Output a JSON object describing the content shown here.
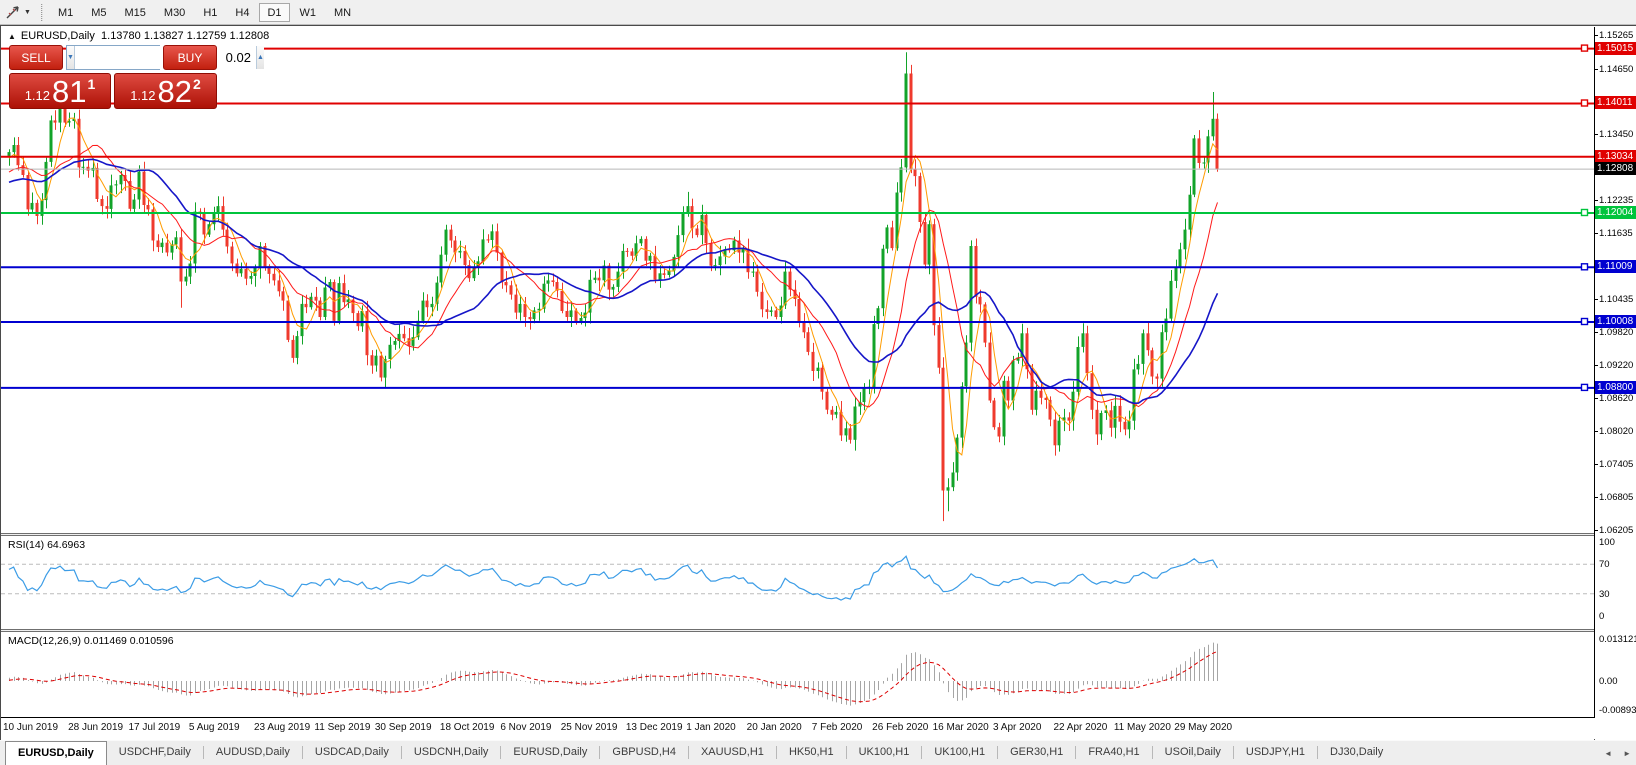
{
  "toolbar": {
    "timeframes": [
      "M1",
      "M5",
      "M15",
      "M30",
      "H1",
      "H4",
      "D1",
      "W1",
      "MN"
    ],
    "active_timeframe": "D1"
  },
  "title": {
    "expand_marker": "▲",
    "symbol": "EURUSD,Daily",
    "ohlc": "1.13780 1.13827 1.12759 1.12808"
  },
  "oneclick": {
    "sell_label": "SELL",
    "buy_label": "BUY",
    "volume": "0.02",
    "sell_price_small": "1.12",
    "sell_price_big": "81",
    "sell_price_sup": "1",
    "buy_price_small": "1.12",
    "buy_price_big": "82",
    "buy_price_sup": "2",
    "down_arrow": "▼",
    "up_arrow": "▲"
  },
  "price_axis": {
    "ticks": [
      "1.15265",
      "1.14650",
      "1.13450",
      "1.12235",
      "1.11635",
      "1.10435",
      "1.09820",
      "1.09220",
      "1.08620",
      "1.08020",
      "1.07405",
      "1.06805",
      "1.06205"
    ],
    "current": {
      "price": "1.12808",
      "value": 1.12808,
      "bg": "#000000"
    }
  },
  "levels": [
    {
      "price": "1.15015",
      "value": 1.15015,
      "color": "#e00000",
      "handle": true
    },
    {
      "price": "1.14011",
      "value": 1.14011,
      "color": "#e00000",
      "handle": true
    },
    {
      "price": "1.13034",
      "value": 1.13034,
      "color": "#e00000",
      "handle": false
    },
    {
      "price": "1.12004",
      "value": 1.12004,
      "color": "#00c43c",
      "handle": true
    },
    {
      "price": "1.11009",
      "value": 1.11009,
      "color": "#0000d0",
      "handle": true
    },
    {
      "price": "1.10008",
      "value": 1.10008,
      "color": "#0000d0",
      "handle": true
    },
    {
      "price": "1.08800",
      "value": 1.088,
      "color": "#0000d0",
      "handle": true
    }
  ],
  "rsi": {
    "label": "RSI(14) 64.6963",
    "period": 14,
    "value": "64.6963",
    "ticks": [
      {
        "t": "100",
        "v": 100
      },
      {
        "t": "70",
        "v": 70
      },
      {
        "t": "30",
        "v": 30
      },
      {
        "t": "0",
        "v": 0
      }
    ],
    "guide_levels": [
      70,
      30
    ]
  },
  "macd": {
    "label": "MACD(12,26,9) 0.011469 0.010596",
    "values": [
      "0.011469",
      "0.010596"
    ],
    "ticks": [
      {
        "t": "0.013121",
        "v": 0.013121
      },
      {
        "t": "0.00",
        "v": 0
      },
      {
        "t": "-0.00893",
        "v": -0.00893
      }
    ]
  },
  "dates": [
    {
      "t": "10 Jun 2019",
      "i": 0
    },
    {
      "t": "28 Jun 2019",
      "i": 14
    },
    {
      "t": "17 Jul 2019",
      "i": 27
    },
    {
      "t": "5 Aug 2019",
      "i": 40
    },
    {
      "t": "23 Aug 2019",
      "i": 54
    },
    {
      "t": "11 Sep 2019",
      "i": 67
    },
    {
      "t": "30 Sep 2019",
      "i": 80
    },
    {
      "t": "18 Oct 2019",
      "i": 94
    },
    {
      "t": "6 Nov 2019",
      "i": 107
    },
    {
      "t": "25 Nov 2019",
      "i": 120
    },
    {
      "t": "13 Dec 2019",
      "i": 134
    },
    {
      "t": "1 Jan 2020",
      "i": 147
    },
    {
      "t": "20 Jan 2020",
      "i": 160
    },
    {
      "t": "7 Feb 2020",
      "i": 174
    },
    {
      "t": "26 Feb 2020",
      "i": 187
    },
    {
      "t": "16 Mar 2020",
      "i": 200
    },
    {
      "t": "3 Apr 2020",
      "i": 213
    },
    {
      "t": "22 Apr 2020",
      "i": 226
    },
    {
      "t": "11 May 2020",
      "i": 239
    },
    {
      "t": "29 May 2020",
      "i": 252
    }
  ],
  "tabs": [
    {
      "label": "EURUSD,Daily",
      "active": true
    },
    {
      "label": "USDCHF,Daily",
      "active": false
    },
    {
      "label": "AUDUSD,Daily",
      "active": false
    },
    {
      "label": "USDCAD,Daily",
      "active": false
    },
    {
      "label": "USDCNH,Daily",
      "active": false
    },
    {
      "label": "EURUSD,Daily",
      "active": false
    },
    {
      "label": "GBPUSD,H4",
      "active": false
    },
    {
      "label": "XAUUSD,H1",
      "active": false
    },
    {
      "label": "HK50,H1",
      "active": false
    },
    {
      "label": "UK100,H1",
      "active": false
    },
    {
      "label": "UK100,H1",
      "active": false
    },
    {
      "label": "GER30,H1",
      "active": false
    },
    {
      "label": "FRA40,H1",
      "active": false
    },
    {
      "label": "USOil,Daily",
      "active": false
    },
    {
      "label": "USDJPY,H1",
      "active": false
    },
    {
      "label": "DJ30,Daily",
      "active": false
    }
  ],
  "tab_arrows": [
    "◄",
    "►"
  ],
  "colors": {
    "up": "#12a329",
    "down": "#ef3a2d",
    "hist": "#a6a6a6",
    "signal": "#dd0000",
    "rsi": "#3b9ce6",
    "current_line": "#b6b6b6",
    "guide": "#bcbcbc",
    "ma_fast": "#ff9c00",
    "ma_mid": "#ff1a1a",
    "ma_slow": "#1616c8"
  },
  "chart_data": {
    "type": "candlestick",
    "symbol": "EURUSD",
    "timeframe": "Daily",
    "visible_high": 1.15265,
    "visible_low": 1.06205,
    "last_candle": {
      "open": 1.1378,
      "high": 1.13827,
      "low": 1.12759,
      "close": 1.12808
    },
    "ma": [
      {
        "name": "ma-fast",
        "period": 5,
        "colorKey": "ma_fast",
        "w": 1
      },
      {
        "name": "ma-mid",
        "period": 12,
        "colorKey": "ma_mid",
        "w": 1
      },
      {
        "name": "ma-slow",
        "period": 24,
        "colorKey": "ma_slow",
        "w": 1.6
      }
    ],
    "pre_closes": [
      1.1285,
      1.1296,
      1.1302,
      1.1288,
      1.1275,
      1.1262,
      1.127,
      1.1258,
      1.1244,
      1.123,
      1.1238,
      1.1252,
      1.1246,
      1.1234,
      1.1221,
      1.1215,
      1.1228,
      1.124,
      1.1253,
      1.1266,
      1.1258,
      1.1247,
      1.1239,
      1.1251,
      1.1264,
      1.1277,
      1.129,
      1.1301,
      1.1294,
      1.1305
    ],
    "closes": [
      1.1312,
      1.1325,
      1.1288,
      1.127,
      1.1207,
      1.1219,
      1.1195,
      1.1224,
      1.1294,
      1.137,
      1.1366,
      1.1398,
      1.1366,
      1.1369,
      1.1373,
      1.1284,
      1.1285,
      1.1278,
      1.1283,
      1.1226,
      1.1213,
      1.1208,
      1.1251,
      1.1253,
      1.127,
      1.1259,
      1.1208,
      1.1225,
      1.1276,
      1.1215,
      1.1207,
      1.115,
      1.1138,
      1.1146,
      1.1128,
      1.1143,
      1.1156,
      1.1075,
      1.1084,
      1.1108,
      1.1203,
      1.12,
      1.1161,
      1.118,
      1.1199,
      1.1213,
      1.117,
      1.1139,
      1.1108,
      1.109,
      1.1098,
      1.108,
      1.1085,
      1.11,
      1.114,
      1.1101,
      1.1089,
      1.1077,
      1.1057,
      1.104,
      1.0968,
      1.0935,
      1.0975,
      1.1034,
      1.1028,
      1.1047,
      1.104,
      1.101,
      1.1064,
      1.1074,
      1.1003,
      1.1072,
      1.1037,
      1.1042,
      1.1017,
      1.0993,
      1.1021,
      1.094,
      1.0921,
      1.0939,
      1.0899,
      1.0933,
      1.0959,
      1.0966,
      1.0979,
      1.0971,
      1.0957,
      1.0973,
      1.1003,
      1.104,
      1.1028,
      1.1034,
      1.1073,
      1.1124,
      1.117,
      1.115,
      1.1128,
      1.1131,
      1.1105,
      1.1081,
      1.11,
      1.1112,
      1.1152,
      1.1151,
      1.1167,
      1.1128,
      1.1074,
      1.1068,
      1.1051,
      1.1018,
      1.1034,
      1.101,
      1.1006,
      1.1022,
      1.1025,
      1.1071,
      1.1077,
      1.1074,
      1.1058,
      1.1021,
      1.101,
      1.1022,
      1.1001,
      1.1008,
      1.1018,
      1.1078,
      1.1082,
      1.1077,
      1.1104,
      1.106,
      1.1065,
      1.1093,
      1.1131,
      1.113,
      1.1122,
      1.1145,
      1.1153,
      1.1113,
      1.1122,
      1.1078,
      1.109,
      1.1087,
      1.1095,
      1.112,
      1.116,
      1.1199,
      1.1213,
      1.1172,
      1.116,
      1.1197,
      1.1145,
      1.1104,
      1.1105,
      1.1121,
      1.1134,
      1.1132,
      1.115,
      1.1128,
      1.1135,
      1.1092,
      1.1093,
      1.1056,
      1.1024,
      1.1019,
      1.1022,
      1.101,
      1.1031,
      1.1093,
      1.106,
      1.1043,
      1.1001,
      1.0982,
      1.0946,
      1.0911,
      1.0917,
      1.0873,
      1.084,
      1.0831,
      1.0836,
      1.0793,
      1.0806,
      1.0785,
      1.0846,
      1.0854,
      1.088,
      1.0882,
      1.0997,
      1.1026,
      1.1135,
      1.1174,
      1.1136,
      1.1238,
      1.1284,
      1.1456,
      1.1281,
      1.1268,
      1.1184,
      1.1106,
      1.118,
      1.0995,
      1.0917,
      1.0692,
      1.0698,
      1.0725,
      1.0789,
      1.0883,
      1.0963,
      1.114,
      1.1047,
      1.1033,
      1.0963,
      1.0857,
      1.0808,
      1.0791,
      1.0893,
      1.0857,
      1.093,
      1.0936,
      1.098,
      1.0914,
      1.084,
      1.0875,
      1.0862,
      1.0858,
      1.0822,
      1.0775,
      1.082,
      1.0826,
      1.082,
      1.0873,
      1.0955,
      1.098,
      1.0907,
      1.084,
      1.0795,
      1.0834,
      1.0839,
      1.0807,
      1.0847,
      1.0818,
      1.0804,
      1.082,
      1.0914,
      1.0924,
      1.098,
      1.0949,
      1.0901,
      1.0897,
      1.0982,
      1.1007,
      1.1076,
      1.1101,
      1.1134,
      1.117,
      1.1234,
      1.1337,
      1.1292,
      1.1293,
      1.1341,
      1.1373,
      1.1281
    ],
    "extremes": {
      "11": {
        "h": 1.1412
      },
      "37": {
        "l": 1.1027
      },
      "61": {
        "l": 1.0926
      },
      "81": {
        "l": 1.0879
      },
      "94": {
        "h": 1.1179
      },
      "146": {
        "h": 1.1239
      },
      "181": {
        "l": 1.0778
      },
      "193": {
        "h": 1.1495
      },
      "201": {
        "l": 1.0636
      },
      "202": {
        "l": 1.0654
      },
      "225": {
        "l": 1.0756
      },
      "259": {
        "h": 1.1422
      },
      "260": {
        "h": 1.13827,
        "l": 1.12759
      }
    }
  }
}
